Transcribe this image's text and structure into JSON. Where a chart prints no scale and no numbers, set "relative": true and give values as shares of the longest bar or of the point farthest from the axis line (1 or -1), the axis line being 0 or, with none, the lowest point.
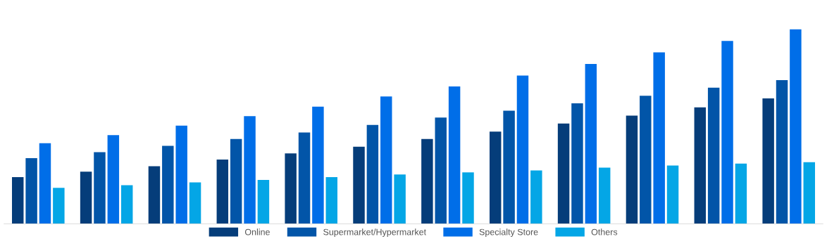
{
  "chart_data": {
    "type": "bar",
    "relative": true,
    "categories": [
      null,
      null,
      null,
      null,
      null,
      null,
      null,
      null,
      null,
      null,
      null,
      null
    ],
    "series": [
      {
        "name": "Online",
        "color": "#053d7a",
        "values": [
          0.24,
          0.268,
          0.296,
          0.331,
          0.362,
          0.397,
          0.436,
          0.474,
          0.516,
          0.557,
          0.599,
          0.645
        ]
      },
      {
        "name": "Supermarket/Hypermarket",
        "color": "#0255a8",
        "values": [
          0.338,
          0.369,
          0.401,
          0.436,
          0.47,
          0.509,
          0.547,
          0.582,
          0.62,
          0.659,
          0.7,
          0.739
        ]
      },
      {
        "name": "Specialty Store",
        "color": "#006ee8",
        "values": [
          0.415,
          0.456,
          0.505,
          0.554,
          0.603,
          0.655,
          0.707,
          0.763,
          0.822,
          0.882,
          0.941,
          1
        ]
      },
      {
        "name": "Others",
        "color": "#04a6e6",
        "values": [
          0.185,
          0.199,
          0.213,
          0.226,
          0.24,
          0.254,
          0.265,
          0.275,
          0.289,
          0.3,
          0.31,
          0.317
        ]
      }
    ],
    "legend": "bottom",
    "grid": false
  }
}
